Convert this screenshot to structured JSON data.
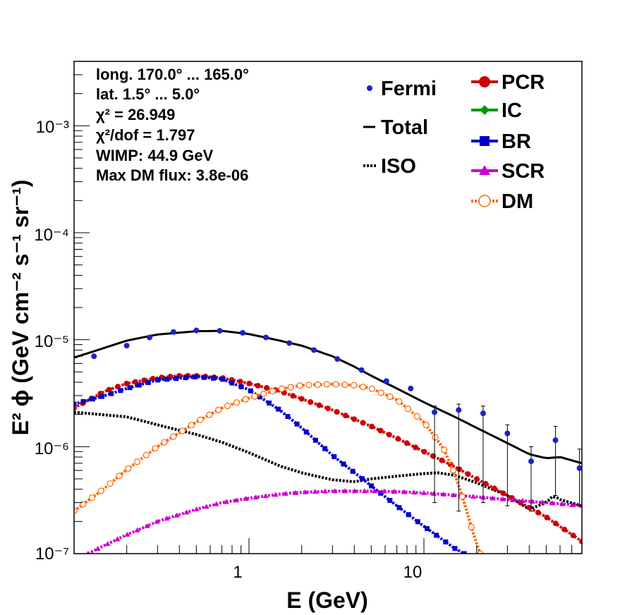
{
  "info": {
    "longitude": "long. 170.0° ... 165.0°",
    "latitude": "lat. 1.5° ... 5.0°",
    "chi2": "χ² = 26.949",
    "chi2_dof": "χ²/dof = 1.797",
    "wimp": "WIMP: 44.9 GeV",
    "max_dm_flux": "Max DM flux: 3.8e-06"
  },
  "axes": {
    "xlabel": "E (GeV)",
    "ylabel": "E² ϕ (GeV cm⁻² s⁻¹ sr⁻¹)",
    "x_ticks": [
      "1",
      "10"
    ],
    "y_ticks": [
      "10⁻⁷",
      "10⁻⁶",
      "10⁻⁵",
      "10⁻⁴",
      "10⁻³"
    ]
  },
  "colors": {
    "Fermi": "#1f1fcc",
    "Total": "#000000",
    "ISO": "#000000",
    "PCR": "#cc0000",
    "IC": "#009900",
    "BR": "#0000cc",
    "SCR": "#cc00cc",
    "DM": "#ff6600"
  },
  "legend_left": [
    "Fermi",
    "Total",
    "ISO"
  ],
  "legend_right": [
    "PCR",
    "IC",
    "BR",
    "SCR",
    "DM"
  ],
  "chart_data": {
    "type": "line",
    "xscale": "log",
    "yscale": "log",
    "xlim": [
      0.1,
      80
    ],
    "ylim": [
      1e-07,
      0.004
    ],
    "xlabel": "E (GeV)",
    "ylabel": "E² ϕ (GeV cm⁻² s⁻¹ sr⁻¹)",
    "grid": false,
    "fermi": {
      "x": [
        0.13,
        0.2,
        0.27,
        0.37,
        0.5,
        0.68,
        0.92,
        1.25,
        1.7,
        2.35,
        3.2,
        4.4,
        6.1,
        8.4,
        11.5,
        15.8,
        21.8,
        30.0,
        41.0,
        56.5,
        77.5
      ],
      "y": [
        7e-06,
        8.8e-06,
        1.05e-05,
        1.18e-05,
        1.22e-05,
        1.21e-05,
        1.16e-05,
        1.05e-05,
        9.3e-06,
        8e-06,
        6.6e-06,
        5.2e-06,
        4.1e-06,
        3.5e-06,
        2.1e-06,
        2.2e-06,
        2.05e-06,
        1.33e-06,
        7.3e-07,
        1.15e-06,
        6.3e-07
      ],
      "err_lo": [
        0,
        0,
        0,
        0,
        0,
        0,
        0,
        0,
        0,
        0,
        0,
        0,
        0,
        0,
        1.8e-06,
        1.95e-06,
        1.75e-06,
        1.05e-06,
        4.8e-07,
        8e-07,
        3.5e-07
      ],
      "err_hi": [
        0,
        0,
        0,
        0,
        0,
        0,
        0,
        0,
        0,
        0,
        0,
        0,
        0,
        0,
        2.4e-06,
        2.5e-06,
        2.4e-06,
        1.6e-06,
        1e-06,
        1.55e-06,
        9.5e-07
      ]
    },
    "series": [
      {
        "name": "Total",
        "x": [
          0.1,
          0.13,
          0.2,
          0.3,
          0.5,
          0.7,
          1.0,
          1.5,
          2.0,
          3.0,
          4.0,
          5.0,
          7.0,
          10.0,
          15.0,
          20.0,
          30.0,
          40.0,
          50.0,
          60.0,
          80.0
        ],
        "y": [
          6.8e-06,
          7.8e-06,
          9.8e-06,
          1.12e-05,
          1.2e-05,
          1.21e-05,
          1.13e-05,
          9.8e-06,
          8.8e-06,
          7e-06,
          5.6e-06,
          4.6e-06,
          3.5e-06,
          2.6e-06,
          1.9e-06,
          1.5e-06,
          1.08e-06,
          8.5e-07,
          7.8e-07,
          8e-07,
          7e-07
        ]
      },
      {
        "name": "ISO",
        "x": [
          0.1,
          0.2,
          0.3,
          0.5,
          0.7,
          1.0,
          1.5,
          2.0,
          3.0,
          4.0,
          5.0,
          7.0,
          10.0,
          12.0,
          15.0,
          20.0,
          30.0,
          40.0,
          50.0,
          55.0,
          60.0,
          80.0
        ],
        "y": [
          2.1e-06,
          1.9e-06,
          1.6e-06,
          1.3e-06,
          1.1e-06,
          8.8e-07,
          6.6e-07,
          5.7e-07,
          4.9e-07,
          4.7e-07,
          5e-07,
          5.3e-07,
          5.6e-07,
          5.7e-07,
          5.4e-07,
          4.6e-07,
          3.5e-07,
          2.6e-07,
          3e-07,
          3.5e-07,
          3.2e-07,
          2.8e-07
        ]
      },
      {
        "name": "PCR",
        "x": [
          0.1,
          0.15,
          0.2,
          0.3,
          0.4,
          0.5,
          0.7,
          1.0,
          1.5,
          2.0,
          3.0,
          5.0,
          7.0,
          10.0,
          15.0,
          20.0,
          30.0,
          50.0,
          80.0
        ],
        "y": [
          2.3e-06,
          3.3e-06,
          3.9e-06,
          4.4e-06,
          4.6e-06,
          4.6e-06,
          4.4e-06,
          3.9e-06,
          3.3e-06,
          2.8e-06,
          2.2e-06,
          1.55e-06,
          1.2e-06,
          9e-07,
          6.5e-07,
          5e-07,
          3.5e-07,
          2.2e-07,
          1.3e-07
        ]
      },
      {
        "name": "IC",
        "x": [],
        "y": []
      },
      {
        "name": "BR",
        "x": [
          0.1,
          0.15,
          0.2,
          0.3,
          0.5,
          0.7,
          1.0,
          1.5,
          2.0,
          3.0,
          5.0,
          7.0,
          10.0,
          15.0,
          17.0
        ],
        "y": [
          2.5e-06,
          3e-06,
          3.5e-06,
          4.2e-06,
          4.5e-06,
          4.3e-06,
          3.4e-06,
          2.2e-06,
          1.5e-06,
          8.3e-07,
          4.3e-07,
          2.8e-07,
          1.8e-07,
          1.12e-07,
          1e-07
        ]
      },
      {
        "name": "SCR",
        "x": [
          0.12,
          0.15,
          0.2,
          0.3,
          0.5,
          0.7,
          1.0,
          1.5,
          2.0,
          3.0,
          5.0,
          7.0,
          10.0,
          20.0,
          30.0,
          50.0,
          80.0
        ],
        "y": [
          1e-07,
          1.2e-07,
          1.5e-07,
          2e-07,
          2.6e-07,
          3e-07,
          3.3e-07,
          3.6e-07,
          3.75e-07,
          3.85e-07,
          3.85e-07,
          3.8e-07,
          3.7e-07,
          3.4e-07,
          3.2e-07,
          3e-07,
          2.8e-07
        ]
      },
      {
        "name": "DM",
        "x": [
          0.1,
          0.15,
          0.2,
          0.3,
          0.5,
          0.7,
          1.0,
          1.5,
          2.0,
          3.0,
          4.0,
          5.0,
          7.0,
          10.0,
          13.0,
          15.0,
          17.0,
          19.0,
          21.0
        ],
        "y": [
          2.5e-07,
          4.1e-07,
          6.1e-07,
          1e-06,
          1.7e-06,
          2.3e-06,
          2.85e-06,
          3.45e-06,
          3.75e-06,
          3.85e-06,
          3.75e-06,
          3.5e-06,
          2.75e-06,
          1.7e-06,
          9.5e-07,
          5.6e-07,
          3e-07,
          1.6e-07,
          1e-07
        ]
      }
    ]
  }
}
